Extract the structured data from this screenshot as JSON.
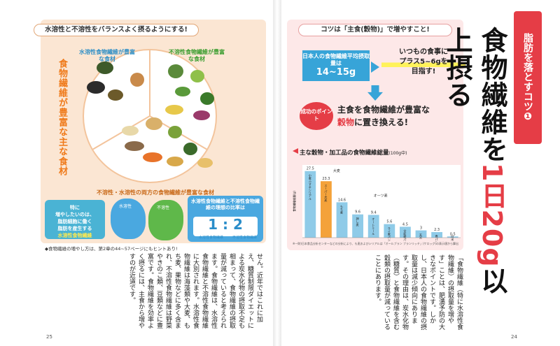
{
  "left": {
    "panel_title": "水溶性と不溶性をバランスよく摂るようにする!",
    "side_band": "食物繊維が豊富な主な食材",
    "water_soluble_label": "水溶性食物繊維が豊富な食材",
    "insoluble_label": "不溶性食物繊維が豊富な食材",
    "both_label": "不溶性・水溶性の両方の食物繊維が豊富な食材",
    "foods": [
      "わかめ",
      "ひじき",
      "玉ねぎ",
      "めかぶ",
      "納豆",
      "キャベツ",
      "レタス",
      "いんげん",
      "ブロッコリー",
      "大豆",
      "さつまいも",
      "バナナ",
      "ほうれんそう",
      "じゃがいも",
      "もち麦",
      "キウイフルーツ",
      "大麦",
      "なめこ",
      "ごぼう",
      "にんじん",
      "アボカド",
      "ひよこ豆",
      "エリンギ",
      "オクラ"
    ],
    "bubble": [
      "特に",
      "増やしたいのは、",
      "脂肪細胞に働く",
      "脂肪を産生する",
      "水溶性食物繊維"
    ],
    "mascot_blue": "水溶性",
    "mascot_green": "不溶性",
    "ratio_title": "水溶性食物繊維と不溶性食物繊維の理想の比率は",
    "ratio_value": "1 : 2",
    "ratio_sub_a": "水溶性食物繊維",
    "ratio_sub_b": "不溶性食物繊維",
    "note": "◆食物繊維の増やし方は、第2章の44~57ページにもヒントあり!",
    "body": "せん。近年ではこれに加え、糖質制限ダイエットによる炭水化物の摂取不足も相まって、食物繊維の摂取量が減っていると考えられます。食物繊維は、水溶性食物繊維と不溶性食物繊維に大別されます。水溶性食物繊維は海藻類や大麦、もち麦、果物などに多く含まれ、不溶性食物繊維は野菜やきのこ類、豆類などに豊富です。食物繊維を効率よく摂るには、主食から増やすのが近道です。",
    "folio": "25"
  },
  "right": {
    "kotsu_title": "コツは「主食(穀物)」で増やすこと!",
    "avg_label": "日本人の食物繊維平均摂取量は",
    "avg_value": "14~15g",
    "plus_line1": "いつもの食事に",
    "plus_line2": "プラス5~6gを",
    "plus_line3": "目指す!",
    "point_badge": "成功のポイント",
    "point_line1": "主食を食物繊維が豊富な",
    "point_line2a": "穀物",
    "point_line2b": "に置き換える!",
    "chart_heading": "主な穀物・加工品の食物繊維総量",
    "chart_unit": "(100g中)",
    "chart_footnote": "※一財)日本食品分析センターなどの分析により、も麦およびシリアルは「オールブラン ブランリッチ」(ケロッグ)の表示値から算出",
    "body": "「食物繊維（特に水溶性食物繊維）の摂取量を増やす」ことは、肥満予防の大きなポイントです。しかし、日本人の食物繊維の摂取量は減少傾向にあります。その理由は、炭水化物（糖質）と食物繊維を含む穀類の摂取量が減っていることにあります。",
    "headline_a": "食物繊維を",
    "headline_num": "1日20g",
    "headline_b": "以上摂る",
    "tab": "脂肪を落とすコツ❶",
    "folio": "24"
  },
  "chart_data": {
    "type": "bar",
    "title": "主な穀物・加工品の食物繊維総量",
    "ylabel": "食物繊維総量(g)",
    "categories": [
      "小麦ふすまシリアル",
      "スーパー大麦",
      "もち麦",
      "押し麦",
      "オートミール",
      "ライ麦パン",
      "全粒粉パン",
      "玄米",
      "食パン",
      "白米"
    ],
    "values": [
      27.5,
      23.3,
      14.6,
      9.6,
      9.4,
      5.6,
      4.5,
      3.0,
      2.3,
      0.5
    ],
    "colors": [
      "#8fcbe8",
      "#f4a23a",
      "#8fcbe8",
      "#8fcbe8",
      "#8fcbe8",
      "#8fcbe8",
      "#8fcbe8",
      "#8fcbe8",
      "#8fcbe8",
      "#8fcbe8"
    ],
    "annotations": [
      "大麦",
      "オーツ麦"
    ],
    "ylim": [
      0,
      30
    ]
  }
}
